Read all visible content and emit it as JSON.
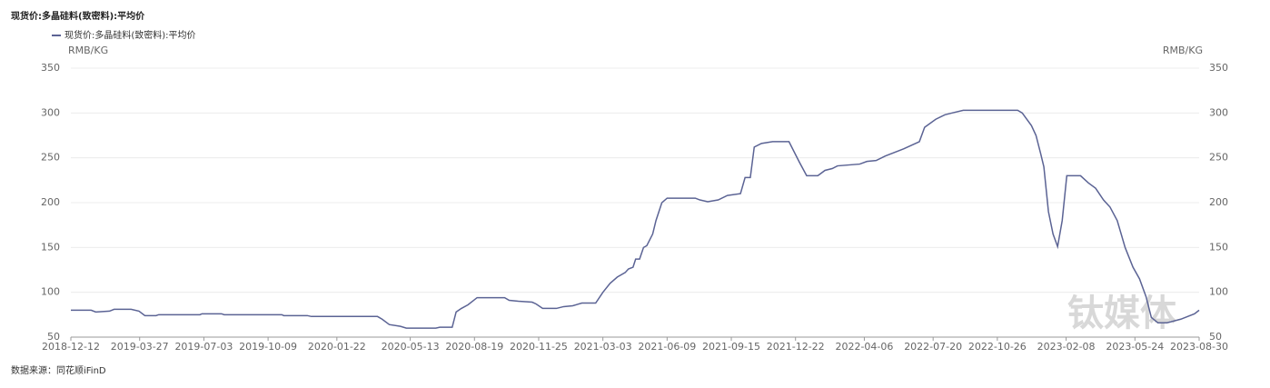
{
  "chart_data": {
    "type": "line",
    "title": "现货价:多晶硅料(致密料):平均价",
    "y_label": "RMB/KG",
    "y2_label": "RMB/KG",
    "source": "数据来源：同花顺iFinD",
    "watermark": "钛媒体",
    "legend": "top-left",
    "grid": true,
    "xlim": [
      "2018-12-12",
      "2023-08-30"
    ],
    "xticks": [
      "2018-12-12",
      "2019-03-27",
      "2019-07-03",
      "2019-10-09",
      "2020-01-22",
      "2020-05-13",
      "2020-08-19",
      "2020-11-25",
      "2021-03-03",
      "2021-06-09",
      "2021-09-15",
      "2021-12-22",
      "2022-04-06",
      "2022-07-20",
      "2022-10-26",
      "2023-02-08",
      "2023-05-24",
      "2023-08-30"
    ],
    "ylim": [
      50,
      350
    ],
    "yticks": [
      50,
      100,
      150,
      200,
      250,
      300,
      350
    ],
    "y2lim": [
      50,
      350
    ],
    "y2ticks": [
      50,
      100,
      150,
      200,
      250,
      300,
      350
    ],
    "x": [
      "2018-12-12",
      "2019-01-12",
      "2019-01-19",
      "2019-02-09",
      "2019-02-16",
      "2019-03-14",
      "2019-03-26",
      "2019-04-04",
      "2019-04-21",
      "2019-04-25",
      "2019-06-27",
      "2019-06-30",
      "2019-07-30",
      "2019-08-03",
      "2019-10-30",
      "2019-11-02",
      "2019-12-08",
      "2019-12-14",
      "2020-03-24",
      "2020-03-31",
      "2020-04-11",
      "2020-04-28",
      "2020-05-07",
      "2020-06-21",
      "2020-06-27",
      "2020-07-16",
      "2020-07-22",
      "2020-07-30",
      "2020-08-09",
      "2020-08-23",
      "2020-10-04",
      "2020-10-11",
      "2020-10-25",
      "2020-11-15",
      "2020-11-21",
      "2020-12-01",
      "2020-12-22",
      "2021-01-02",
      "2021-01-16",
      "2021-01-30",
      "2021-02-20",
      "2021-03-03",
      "2021-03-14",
      "2021-03-25",
      "2021-04-06",
      "2021-04-11",
      "2021-04-18",
      "2021-04-22",
      "2021-04-28",
      "2021-05-04",
      "2021-05-09",
      "2021-05-18",
      "2021-05-23",
      "2021-06-01",
      "2021-06-09",
      "2021-07-22",
      "2021-07-29",
      "2021-08-10",
      "2021-08-26",
      "2021-09-09",
      "2021-09-29",
      "2021-10-06",
      "2021-10-14",
      "2021-10-20",
      "2021-10-31",
      "2021-11-17",
      "2021-12-12",
      "2021-12-28",
      "2022-01-08",
      "2022-01-25",
      "2022-02-05",
      "2022-02-16",
      "2022-02-24",
      "2022-03-30",
      "2022-04-10",
      "2022-04-24",
      "2022-05-08",
      "2022-06-05",
      "2022-06-29",
      "2022-07-07",
      "2022-07-24",
      "2022-08-07",
      "2022-08-18",
      "2022-09-04",
      "2022-11-26",
      "2022-12-03",
      "2022-12-17",
      "2022-12-24",
      "2022-12-31",
      "2023-01-05",
      "2023-01-12",
      "2023-01-19",
      "2023-01-26",
      "2023-02-02",
      "2023-02-09",
      "2023-03-02",
      "2023-03-14",
      "2023-03-25",
      "2023-04-06",
      "2023-04-16",
      "2023-04-27",
      "2023-05-09",
      "2023-05-21",
      "2023-05-31",
      "2023-06-10",
      "2023-06-18",
      "2023-06-28",
      "2023-07-12",
      "2023-08-02",
      "2023-08-23",
      "2023-08-30"
    ],
    "series": [
      {
        "name": "现货价:多晶硅料(致密料):平均价",
        "color": "#5b6394",
        "values": [
          80,
          80,
          78,
          79,
          81,
          81,
          79,
          74,
          74,
          75,
          75,
          76,
          76,
          75,
          75,
          74,
          74,
          73,
          73,
          70,
          64,
          62,
          60,
          60,
          61,
          61,
          78,
          82,
          86,
          94,
          94,
          91,
          90,
          89,
          87,
          82,
          82,
          84,
          85,
          88,
          88,
          100,
          110,
          117,
          122,
          126,
          128,
          137,
          137,
          150,
          152,
          165,
          180,
          200,
          205,
          205,
          203,
          201,
          203,
          208,
          210,
          228,
          228,
          262,
          266,
          268,
          268,
          245,
          230,
          230,
          236,
          238,
          241,
          243,
          246,
          247,
          252,
          260,
          268,
          284,
          293,
          298,
          300,
          303,
          303,
          300,
          286,
          275,
          255,
          240,
          190,
          165,
          151,
          180,
          230,
          230,
          222,
          216,
          203,
          195,
          180,
          150,
          128,
          115,
          95,
          72,
          66,
          66,
          70,
          76,
          80
        ]
      }
    ]
  }
}
